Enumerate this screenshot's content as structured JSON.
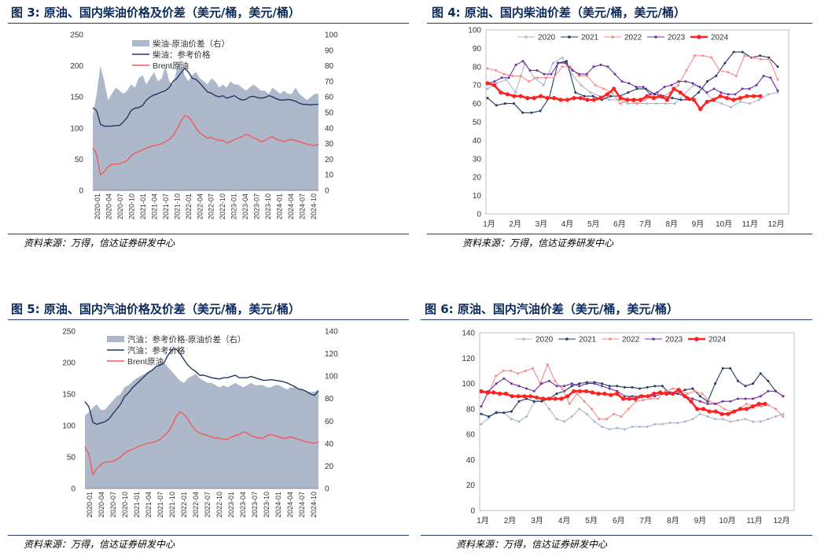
{
  "charts": [
    {
      "fig_no": "图 3:",
      "title": "原油、国内柴油价格及价差（美元/桶，美元/桶）",
      "source": "资料来源：万得，信达证券研发中心",
      "chart_data": {
        "type": "area+line",
        "left_axis": {
          "min": 0,
          "max": 250,
          "ticks": [
            "0",
            "50",
            "100",
            "150",
            "200",
            "250"
          ]
        },
        "right_axis": {
          "min": 0,
          "max": 100,
          "ticks": [
            "0",
            "10",
            "20",
            "30",
            "40",
            "50",
            "60",
            "70",
            "80",
            "90",
            "100"
          ]
        },
        "x_ticks": [
          "2020-01",
          "2020-04",
          "2020-07",
          "2020-10",
          "2021-01",
          "2021-04",
          "2021-07",
          "2021-10",
          "2022-01",
          "2022-04",
          "2022-07",
          "2022-10",
          "2023-01",
          "2023-04",
          "2023-07",
          "2023-10",
          "2024-01",
          "2024-04",
          "2024-07",
          "2024-10"
        ],
        "series": [
          {
            "name": "柴油-原油价差（右）",
            "kind": "area",
            "axis": "right",
            "color": "#adb9ca",
            "values": [
              48,
              62,
              80,
              70,
              58,
              62,
              66,
              64,
              62,
              64,
              68,
              66,
              72,
              74,
              68,
              72,
              76,
              70,
              72,
              80,
              70,
              68,
              78,
              84,
              74,
              70,
              74,
              76,
              72,
              70,
              68,
              72,
              70,
              66,
              68,
              66,
              70,
              68,
              68,
              66,
              64,
              66,
              68,
              66,
              64,
              64,
              62,
              66,
              64,
              62,
              64,
              62,
              62,
              66,
              62,
              60,
              58,
              60,
              62,
              62
            ]
          },
          {
            "name": "柴油：参考价格",
            "kind": "line",
            "axis": "left",
            "color": "#203864",
            "values": [
              133,
              128,
              106,
              103,
              103,
              103,
              104,
              104,
              110,
              117,
              128,
              132,
              133,
              136,
              145,
              150,
              153,
              155,
              158,
              160,
              165,
              175,
              180,
              188,
              196,
              190,
              180,
              178,
              172,
              165,
              158,
              156,
              152,
              150,
              152,
              148,
              150,
              152,
              148,
              145,
              146,
              150,
              151,
              149,
              148,
              149,
              152,
              150,
              147,
              145,
              145,
              146,
              145,
              143,
              140,
              138,
              138,
              137,
              138,
              138
            ]
          },
          {
            "name": "Brent原油",
            "kind": "line",
            "axis": "left",
            "color": "#f05a5a",
            "values": [
              68,
              58,
              25,
              30,
              38,
              42,
              42,
              43,
              45,
              48,
              55,
              60,
              62,
              65,
              68,
              70,
              72,
              73,
              75,
              78,
              82,
              88,
              98,
              110,
              120,
              118,
              110,
              100,
              92,
              88,
              84,
              85,
              82,
              80,
              80,
              76,
              78,
              82,
              84,
              86,
              90,
              88,
              84,
              82,
              78,
              80,
              84,
              86,
              82,
              80,
              78,
              80,
              82,
              80,
              78,
              76,
              74,
              73,
              72,
              74
            ]
          }
        ]
      }
    },
    {
      "fig_no": "图 4:",
      "title": "原油、国内柴油价差（美元/桶，美元/桶）",
      "source": "资料来源：万得，信达证券研发中心",
      "chart_data": {
        "type": "line",
        "y_axis": {
          "min": 0,
          "max": 100,
          "ticks": [
            "0",
            "10",
            "20",
            "30",
            "40",
            "50",
            "60",
            "70",
            "80",
            "90",
            "100"
          ]
        },
        "x_ticks": [
          "1月",
          "2月",
          "3月",
          "4月",
          "5月",
          "6月",
          "7月",
          "8月",
          "9月",
          "10月",
          "11月",
          "12月"
        ],
        "series": [
          {
            "name": "2020",
            "color": "#aab7c8",
            "values": [
              68,
              71,
              73,
              66,
              82,
              74,
              70,
              82,
              85,
              76,
              70,
              66,
              64,
              62,
              62,
              60,
              60,
              60,
              60,
              60,
              60,
              65,
              70,
              68,
              62,
              60,
              58,
              61,
              60,
              62,
              65,
              66
            ]
          },
          {
            "name": "2021",
            "color": "#203864",
            "values": [
              63,
              59,
              60,
              60,
              55,
              55,
              56,
              63,
              82,
              83,
              66,
              64,
              64,
              62,
              64,
              64,
              66,
              68,
              68,
              65,
              64,
              63,
              62,
              62,
              66,
              72,
              75,
              82,
              88,
              88,
              85,
              86,
              85,
              80
            ]
          },
          {
            "name": "2022",
            "color": "#f58b8b",
            "values": [
              79,
              78,
              76,
              75,
              75,
              72,
              74,
              74,
              74,
              80,
              80,
              75,
              75,
              70,
              68,
              66,
              60,
              62,
              60,
              62,
              64,
              63,
              66,
              70,
              78,
              86,
              86,
              85,
              78,
              77,
              75,
              86,
              85,
              84,
              84,
              73
            ]
          },
          {
            "name": "2023",
            "color": "#7030a0",
            "values": [
              71,
              72,
              74,
              74,
              81,
              83,
              78,
              78,
              76,
              76,
              82,
              82,
              78,
              76,
              76,
              80,
              81,
              80,
              76,
              72,
              71,
              69,
              69,
              65,
              66,
              69,
              70,
              72,
              72,
              71,
              69,
              66,
              68,
              66,
              65,
              65,
              68,
              68,
              70,
              75,
              74,
              67
            ]
          },
          {
            "name": "2024",
            "color": "#ff2020",
            "values": [
              71,
              70,
              66,
              65,
              64,
              64,
              63,
              63,
              64,
              63,
              63,
              62,
              62,
              63,
              63,
              62,
              62,
              63,
              65,
              68,
              63,
              62,
              62,
              62,
              64,
              63,
              64,
              62,
              68,
              66,
              63,
              62,
              57,
              61,
              62,
              64,
              63,
              62,
              63,
              64,
              64,
              64
            ]
          }
        ]
      }
    },
    {
      "fig_no": "图 5:",
      "title": "原油、国内汽油价格及价差（美元/桶，美元/桶）",
      "source": "资料来源：万得，信达证券研发中心",
      "chart_data": {
        "type": "area+line",
        "left_axis": {
          "min": 0,
          "max": 250,
          "ticks": [
            "0",
            "50",
            "100",
            "150",
            "200",
            "250"
          ]
        },
        "right_axis": {
          "min": 0,
          "max": 140,
          "ticks": [
            "0",
            "20",
            "40",
            "60",
            "80",
            "100",
            "120",
            "140"
          ]
        },
        "x_ticks": [
          "2020-01",
          "2020-04",
          "2020-07",
          "2020-10",
          "2021-01",
          "2021-04",
          "2021-07",
          "2021-10",
          "2022-01",
          "2022-04",
          "2022-07",
          "2022-10",
          "2023-01",
          "2023-04",
          "2023-07",
          "2023-10",
          "2024-01",
          "2024-04",
          "2024-07",
          "2024-10"
        ],
        "series": [
          {
            "name": "汽油：参考价格-原油价差（右）",
            "kind": "area",
            "axis": "right",
            "color": "#adb9ca",
            "values": [
              65,
              68,
              72,
              75,
              70,
              70,
              74,
              78,
              82,
              84,
              90,
              92,
              95,
              98,
              100,
              102,
              104,
              106,
              108,
              110,
              112,
              108,
              104,
              100,
              96,
              94,
              98,
              100,
              102,
              98,
              96,
              94,
              94,
              92,
              90,
              92,
              90,
              92,
              94,
              92,
              90,
              92,
              94,
              92,
              92,
              92,
              90,
              90,
              92,
              92,
              90,
              88,
              90,
              90,
              88,
              88,
              86,
              86,
              86,
              88
            ]
          },
          {
            "name": "汽油：参考价格",
            "kind": "line",
            "axis": "left",
            "color": "#203864",
            "values": [
              138,
              130,
              105,
              102,
              104,
              106,
              110,
              118,
              126,
              134,
              146,
              152,
              160,
              166,
              172,
              178,
              184,
              188,
              194,
              196,
              200,
              212,
              220,
              222,
              215,
              205,
              196,
              190,
              186,
              180,
              180,
              178,
              176,
              175,
              174,
              176,
              176,
              178,
              180,
              176,
              176,
              176,
              178,
              176,
              174,
              172,
              172,
              173,
              172,
              171,
              170,
              168,
              165,
              162,
              158,
              157,
              154,
              150,
              148,
              155
            ]
          },
          {
            "name": "Brent原油",
            "kind": "line",
            "axis": "left",
            "color": "#f05a5a",
            "values": [
              66,
              55,
              22,
              32,
              38,
              42,
              42,
              43,
              46,
              50,
              56,
              60,
              62,
              65,
              68,
              70,
              72,
              73,
              75,
              78,
              84,
              90,
              100,
              114,
              122,
              118,
              110,
              100,
              92,
              88,
              86,
              84,
              82,
              80,
              80,
              78,
              78,
              82,
              84,
              86,
              90,
              88,
              84,
              82,
              80,
              80,
              84,
              86,
              84,
              82,
              80,
              80,
              82,
              80,
              78,
              76,
              74,
              73,
              72,
              74
            ]
          }
        ]
      }
    },
    {
      "fig_no": "图 6:",
      "title": "原油、国内汽油价差（美元/桶，美元/桶）",
      "source": "资料来源：万得，信达证券研发中心",
      "chart_data": {
        "type": "line",
        "y_axis": {
          "min": 0,
          "max": 140,
          "ticks": [
            "0",
            "20",
            "40",
            "60",
            "80",
            "100",
            "120",
            "140"
          ]
        },
        "x_ticks": [
          "1月",
          "2月",
          "3月",
          "4月",
          "5月",
          "6月",
          "7月",
          "8月",
          "9月",
          "10月",
          "11月",
          "12月"
        ],
        "series": [
          {
            "name": "2020",
            "color": "#aab7c8",
            "values": [
              68,
              73,
              78,
              77,
              72,
              70,
              74,
              85,
              88,
              80,
              72,
              70,
              74,
              80,
              76,
              70,
              66,
              64,
              65,
              64,
              66,
              66,
              66,
              68,
              68,
              69,
              69,
              70,
              72,
              76,
              74,
              72,
              72,
              70,
              71,
              72,
              70,
              70,
              72,
              74,
              76
            ]
          },
          {
            "name": "2021",
            "color": "#203864",
            "values": [
              76,
              74,
              77,
              77,
              78,
              86,
              88,
              86,
              86,
              88,
              92,
              94,
              98,
              100,
              101,
              101,
              100,
              98,
              98,
              97,
              97,
              96,
              97,
              98,
              98,
              92,
              92,
              95,
              96,
              90,
              86,
              100,
              112,
              112,
              102,
              98,
              100,
              108,
              102,
              94,
              90
            ]
          },
          {
            "name": "2022",
            "color": "#f58b8b",
            "values": [
              93,
              92,
              106,
              110,
              110,
              108,
              110,
              112,
              100,
              115,
              102,
              96,
              84,
              92,
              86,
              80,
              72,
              72,
              76,
              74,
              80,
              86,
              87,
              88,
              88,
              94,
              96,
              95,
              92,
              94,
              92,
              86,
              84,
              80,
              78,
              80,
              84,
              82,
              82,
              83,
              80,
              74
            ]
          },
          {
            "name": "2023",
            "color": "#7030a0",
            "values": [
              82,
              94,
              100,
              104,
              100,
              98,
              96,
              94,
              100,
              102,
              98,
              98,
              100,
              98,
              100,
              100,
              98,
              96,
              94,
              90,
              90,
              90,
              90,
              90,
              92,
              93,
              92,
              90,
              88,
              86,
              84,
              84,
              86,
              86,
              88,
              88,
              88,
              90,
              94,
              94,
              90
            ]
          },
          {
            "name": "2024",
            "color": "#ff2020",
            "values": [
              94,
              93,
              93,
              92,
              92,
              90,
              90,
              90,
              90,
              89,
              88,
              88,
              88,
              88,
              90,
              94,
              94,
              94,
              93,
              92,
              92,
              91,
              92,
              88,
              88,
              88,
              90,
              90,
              92,
              93,
              92,
              92,
              95,
              90,
              86,
              80,
              80,
              78,
              78,
              76,
              76,
              78,
              80,
              80,
              82,
              84,
              84
            ]
          }
        ]
      }
    }
  ]
}
